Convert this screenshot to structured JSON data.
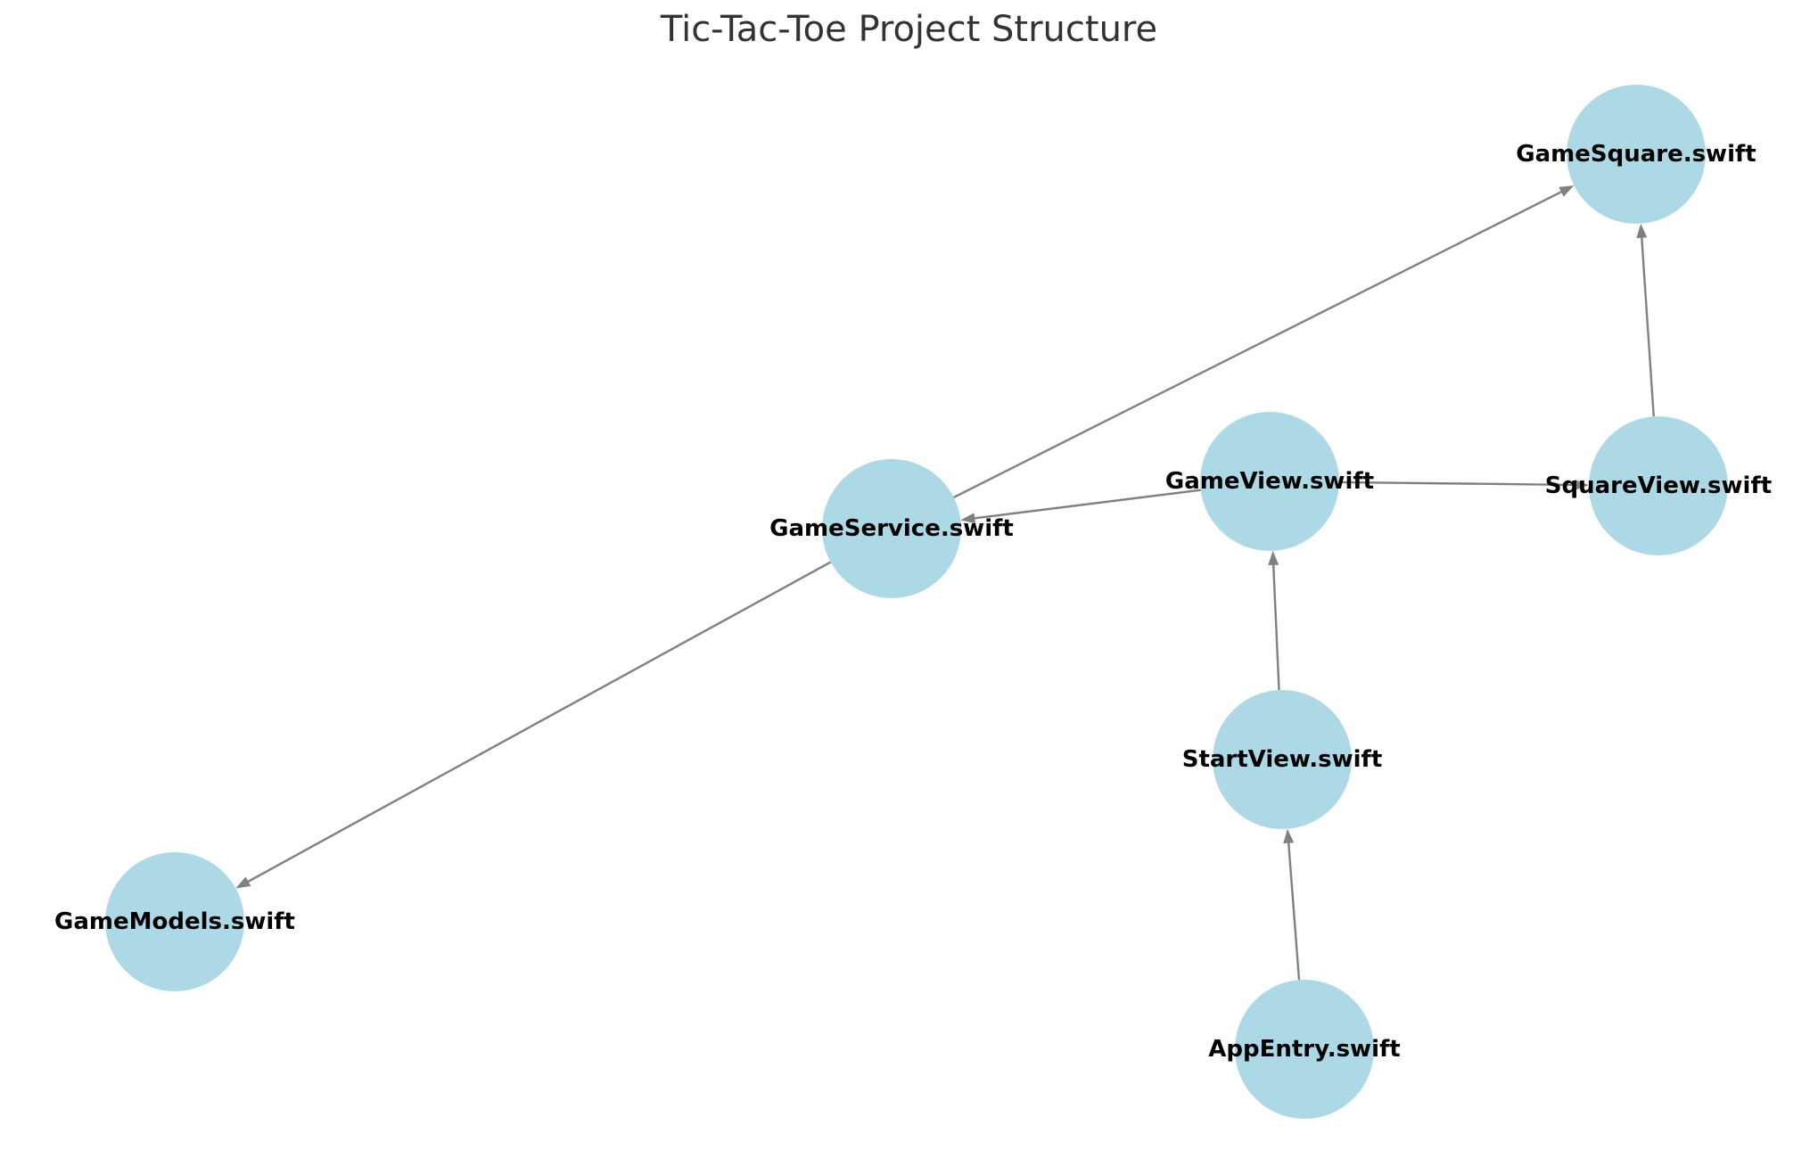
{
  "title": "Tic-Tac-Toe Project Structure",
  "colors": {
    "node_fill": "#add8e6",
    "edge": "#808080",
    "label": "#000000",
    "title": "#333333"
  },
  "nodes": [
    {
      "id": "GameSquare",
      "label": "GameSquare.swift"
    },
    {
      "id": "GameView",
      "label": "GameView.swift"
    },
    {
      "id": "SquareView",
      "label": "SquareView.swift"
    },
    {
      "id": "GameService",
      "label": "GameService.swift"
    },
    {
      "id": "StartView",
      "label": "StartView.swift"
    },
    {
      "id": "GameModels",
      "label": "GameModels.swift"
    },
    {
      "id": "AppEntry",
      "label": "AppEntry.swift"
    }
  ],
  "edges": [
    {
      "from": "GameService",
      "to": "GameSquare"
    },
    {
      "from": "SquareView",
      "to": "GameSquare"
    },
    {
      "from": "GameView",
      "to": "GameService"
    },
    {
      "from": "GameView",
      "to": "SquareView"
    },
    {
      "from": "GameService",
      "to": "GameModels"
    },
    {
      "from": "StartView",
      "to": "GameView"
    },
    {
      "from": "AppEntry",
      "to": "StartView"
    }
  ]
}
